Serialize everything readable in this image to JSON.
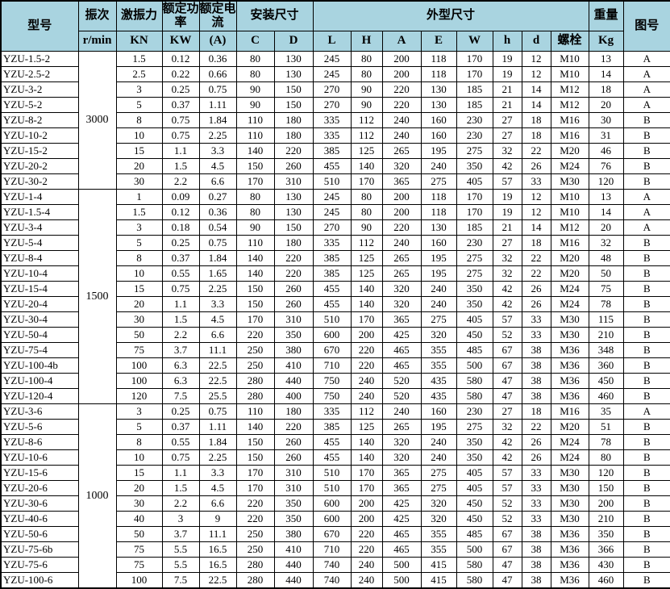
{
  "table": {
    "header": {
      "model": "型号",
      "freq_label": "振次",
      "freq_unit": "r/min",
      "force_label": "激振力",
      "force_unit": "KN",
      "power_label": "额定功率",
      "power_unit": "KW",
      "current_label": "额定电流",
      "current_unit": "(A)",
      "install_label": "安装尺寸",
      "install_cols": [
        "C",
        "D"
      ],
      "overall_label": "外型尺寸",
      "overall_cols": [
        "L",
        "H",
        "A",
        "E",
        "W",
        "h",
        "d",
        "螺栓"
      ],
      "weight_label": "重量",
      "weight_unit": "Kg",
      "figure_label": "图号"
    },
    "columns_order": [
      "model",
      "exciting_force_KN",
      "rated_power_KW",
      "rated_current_A",
      "C",
      "D",
      "L",
      "H",
      "A",
      "E",
      "W",
      "h",
      "d",
      "bolt",
      "weight_Kg",
      "figure"
    ],
    "sections": [
      {
        "rpm": "3000",
        "rows": [
          [
            "YZU-1.5-2",
            "1.5",
            "0.12",
            "0.36",
            "80",
            "130",
            "245",
            "80",
            "200",
            "118",
            "170",
            "19",
            "12",
            "M10",
            "13",
            "A"
          ],
          [
            "YZU-2.5-2",
            "2.5",
            "0.22",
            "0.66",
            "80",
            "130",
            "245",
            "80",
            "200",
            "118",
            "170",
            "19",
            "12",
            "M10",
            "14",
            "A"
          ],
          [
            "YZU-3-2",
            "3",
            "0.25",
            "0.75",
            "90",
            "150",
            "270",
            "90",
            "220",
            "130",
            "185",
            "21",
            "14",
            "M12",
            "18",
            "A"
          ],
          [
            "YZU-5-2",
            "5",
            "0.37",
            "1.11",
            "90",
            "150",
            "270",
            "90",
            "220",
            "130",
            "185",
            "21",
            "14",
            "M12",
            "20",
            "A"
          ],
          [
            "YZU-8-2",
            "8",
            "0.75",
            "1.84",
            "110",
            "180",
            "335",
            "112",
            "240",
            "160",
            "230",
            "27",
            "18",
            "M16",
            "30",
            "B"
          ],
          [
            "YZU-10-2",
            "10",
            "0.75",
            "2.25",
            "110",
            "180",
            "335",
            "112",
            "240",
            "160",
            "230",
            "27",
            "18",
            "M16",
            "31",
            "B"
          ],
          [
            "YZU-15-2",
            "15",
            "1.1",
            "3.3",
            "140",
            "220",
            "385",
            "125",
            "265",
            "195",
            "275",
            "32",
            "22",
            "M20",
            "46",
            "B"
          ],
          [
            "YZU-20-2",
            "20",
            "1.5",
            "4.5",
            "150",
            "260",
            "455",
            "140",
            "320",
            "240",
            "350",
            "42",
            "26",
            "M24",
            "76",
            "B"
          ],
          [
            "YZU-30-2",
            "30",
            "2.2",
            "6.6",
            "170",
            "310",
            "510",
            "170",
            "365",
            "275",
            "405",
            "57",
            "33",
            "M30",
            "120",
            "B"
          ]
        ]
      },
      {
        "rpm": "1500",
        "rows": [
          [
            "YZU-1-4",
            "1",
            "0.09",
            "0.27",
            "80",
            "130",
            "245",
            "80",
            "200",
            "118",
            "170",
            "19",
            "12",
            "M10",
            "13",
            "A"
          ],
          [
            "YZU-1.5-4",
            "1.5",
            "0.12",
            "0.36",
            "80",
            "130",
            "245",
            "80",
            "200",
            "118",
            "170",
            "19",
            "12",
            "M10",
            "14",
            "A"
          ],
          [
            "YZU-3-4",
            "3",
            "0.18",
            "0.54",
            "90",
            "150",
            "270",
            "90",
            "220",
            "130",
            "185",
            "21",
            "14",
            "M12",
            "20",
            "A"
          ],
          [
            "YZU-5-4",
            "5",
            "0.25",
            "0.75",
            "110",
            "180",
            "335",
            "112",
            "240",
            "160",
            "230",
            "27",
            "18",
            "M16",
            "32",
            "B"
          ],
          [
            "YZU-8-4",
            "8",
            "0.37",
            "1.84",
            "140",
            "220",
            "385",
            "125",
            "265",
            "195",
            "275",
            "32",
            "22",
            "M20",
            "48",
            "B"
          ],
          [
            "YZU-10-4",
            "10",
            "0.55",
            "1.65",
            "140",
            "220",
            "385",
            "125",
            "265",
            "195",
            "275",
            "32",
            "22",
            "M20",
            "50",
            "B"
          ],
          [
            "YZU-15-4",
            "15",
            "0.75",
            "2.25",
            "150",
            "260",
            "455",
            "140",
            "320",
            "240",
            "350",
            "42",
            "26",
            "M24",
            "75",
            "B"
          ],
          [
            "YZU-20-4",
            "20",
            "1.1",
            "3.3",
            "150",
            "260",
            "455",
            "140",
            "320",
            "240",
            "350",
            "42",
            "26",
            "M24",
            "78",
            "B"
          ],
          [
            "YZU-30-4",
            "30",
            "1.5",
            "4.5",
            "170",
            "310",
            "510",
            "170",
            "365",
            "275",
            "405",
            "57",
            "33",
            "M30",
            "115",
            "B"
          ],
          [
            "YZU-50-4",
            "50",
            "2.2",
            "6.6",
            "220",
            "350",
            "600",
            "200",
            "425",
            "320",
            "450",
            "52",
            "33",
            "M30",
            "210",
            "B"
          ],
          [
            "YZU-75-4",
            "75",
            "3.7",
            "11.1",
            "250",
            "380",
            "670",
            "220",
            "465",
            "355",
            "485",
            "67",
            "38",
            "M36",
            "348",
            "B"
          ],
          [
            "YZU-100-4b",
            "100",
            "6.3",
            "22.5",
            "250",
            "410",
            "710",
            "220",
            "465",
            "355",
            "500",
            "67",
            "38",
            "M36",
            "360",
            "B"
          ],
          [
            "YZU-100-4",
            "100",
            "6.3",
            "22.5",
            "280",
            "440",
            "750",
            "240",
            "520",
            "435",
            "580",
            "47",
            "38",
            "M36",
            "450",
            "B"
          ],
          [
            "YZU-120-4",
            "120",
            "7.5",
            "25.5",
            "280",
            "400",
            "750",
            "240",
            "520",
            "435",
            "580",
            "47",
            "38",
            "M36",
            "460",
            "B"
          ]
        ]
      },
      {
        "rpm": "1000",
        "rows": [
          [
            "YZU-3-6",
            "3",
            "0.25",
            "0.75",
            "110",
            "180",
            "335",
            "112",
            "240",
            "160",
            "230",
            "27",
            "18",
            "M16",
            "35",
            "A"
          ],
          [
            "YZU-5-6",
            "5",
            "0.37",
            "1.11",
            "140",
            "220",
            "385",
            "125",
            "265",
            "195",
            "275",
            "32",
            "22",
            "M20",
            "51",
            "B"
          ],
          [
            "YZU-8-6",
            "8",
            "0.55",
            "1.84",
            "150",
            "260",
            "455",
            "140",
            "320",
            "240",
            "350",
            "42",
            "26",
            "M24",
            "78",
            "B"
          ],
          [
            "YZU-10-6",
            "10",
            "0.75",
            "2.25",
            "150",
            "260",
            "455",
            "140",
            "320",
            "240",
            "350",
            "42",
            "26",
            "M24",
            "80",
            "B"
          ],
          [
            "YZU-15-6",
            "15",
            "1.1",
            "3.3",
            "170",
            "310",
            "510",
            "170",
            "365",
            "275",
            "405",
            "57",
            "33",
            "M30",
            "120",
            "B"
          ],
          [
            "YZU-20-6",
            "20",
            "1.5",
            "4.5",
            "170",
            "310",
            "510",
            "170",
            "365",
            "275",
            "405",
            "57",
            "33",
            "M30",
            "150",
            "B"
          ],
          [
            "YZU-30-6",
            "30",
            "2.2",
            "6.6",
            "220",
            "350",
            "600",
            "200",
            "425",
            "320",
            "450",
            "52",
            "33",
            "M30",
            "200",
            "B"
          ],
          [
            "YZU-40-6",
            "40",
            "3",
            "9",
            "220",
            "350",
            "600",
            "200",
            "425",
            "320",
            "450",
            "52",
            "33",
            "M30",
            "210",
            "B"
          ],
          [
            "YZU-50-6",
            "50",
            "3.7",
            "11.1",
            "250",
            "380",
            "670",
            "220",
            "465",
            "355",
            "485",
            "67",
            "38",
            "M36",
            "350",
            "B"
          ],
          [
            "YZU-75-6b",
            "75",
            "5.5",
            "16.5",
            "250",
            "410",
            "710",
            "220",
            "465",
            "355",
            "500",
            "67",
            "38",
            "M36",
            "366",
            "B"
          ],
          [
            "YZU-75-6",
            "75",
            "5.5",
            "16.5",
            "280",
            "440",
            "740",
            "240",
            "500",
            "415",
            "580",
            "47",
            "38",
            "M36",
            "430",
            "B"
          ],
          [
            "YZU-100-6",
            "100",
            "7.5",
            "22.5",
            "280",
            "440",
            "740",
            "240",
            "500",
            "415",
            "580",
            "47",
            "38",
            "M36",
            "460",
            "B"
          ]
        ]
      }
    ]
  },
  "colors": {
    "header_bg": "#a9d4e0",
    "border": "#000000",
    "cell_bg": "#ffffff",
    "text": "#000000"
  }
}
